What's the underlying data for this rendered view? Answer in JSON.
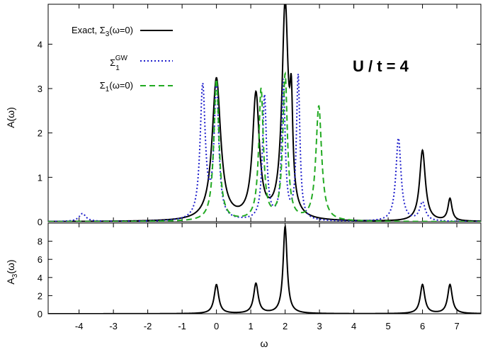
{
  "chart_data": [
    {
      "type": "line",
      "panel": "top",
      "xlabel": "",
      "ylabel": "A(ω)",
      "xlim": [
        -4.9,
        7.7
      ],
      "ylim": [
        0,
        4.9
      ],
      "x_ticks": [
        -4,
        -3,
        -2,
        -1,
        0,
        1,
        2,
        3,
        4,
        5,
        6,
        7
      ],
      "x_tick_labels_shown": false,
      "y_ticks": [
        0,
        1,
        2,
        3,
        4
      ],
      "y_tick_labels": [
        "0",
        "1",
        "2",
        "3",
        "4"
      ],
      "grid": false,
      "legend_position": "top-left",
      "annotation": "U / t = 4",
      "series": [
        {
          "name": "Exact, Σ3(ω=0)",
          "legend_label": {
            "base": "Exact, Σ",
            "sub": "3",
            "tail": "(ω=0)"
          },
          "color": "#000000",
          "style": "solid",
          "width_hint": "0.04",
          "peaks": [
            {
              "x": 0.0,
              "y": 3.2,
              "w": 0.15
            },
            {
              "x": 1.15,
              "y": 2.8,
              "w": 0.12
            },
            {
              "x": 2.0,
              "y": 4.8,
              "w": 0.11
            },
            {
              "x": 2.18,
              "y": 1.95,
              "w": 0.05
            },
            {
              "x": 6.0,
              "y": 1.6,
              "w": 0.1
            },
            {
              "x": 6.8,
              "y": 0.5,
              "w": 0.07
            }
          ]
        },
        {
          "name": "Σ1GW",
          "legend_label": {
            "base": "Σ",
            "sub": "1",
            "sup": "GW"
          },
          "color": "#1f1fcc",
          "style": "dotted",
          "peaks": [
            {
              "x": -3.9,
              "y": 0.18,
              "w": 0.12
            },
            {
              "x": -0.4,
              "y": 3.0,
              "w": 0.09
            },
            {
              "x": 0.0,
              "y": 3.0,
              "w": 0.08
            },
            {
              "x": 1.4,
              "y": 2.8,
              "w": 0.07
            },
            {
              "x": 1.95,
              "y": 3.1,
              "w": 0.06
            },
            {
              "x": 2.38,
              "y": 3.25,
              "w": 0.06
            },
            {
              "x": 5.3,
              "y": 1.87,
              "w": 0.09
            },
            {
              "x": 6.0,
              "y": 0.42,
              "w": 0.1
            }
          ]
        },
        {
          "name": "Σ1(ω=0)",
          "legend_label": {
            "base": "Σ",
            "sub": "1",
            "tail": "(ω=0)"
          },
          "color": "#22aa22",
          "style": "dashed",
          "peaks": [
            {
              "x": 0.0,
              "y": 3.2,
              "w": 0.09
            },
            {
              "x": 1.3,
              "y": 2.95,
              "w": 0.08
            },
            {
              "x": 2.0,
              "y": 3.27,
              "w": 0.08
            },
            {
              "x": 2.98,
              "y": 2.58,
              "w": 0.1
            }
          ]
        }
      ]
    },
    {
      "type": "line",
      "panel": "bottom",
      "xlabel": "ω",
      "ylabel": "A3(ω)",
      "ylabel_parts": {
        "base": "A",
        "sub": "3",
        "tail": "(ω)"
      },
      "xlim": [
        -4.9,
        7.7
      ],
      "ylim": [
        0,
        10
      ],
      "x_ticks": [
        -4,
        -3,
        -2,
        -1,
        0,
        1,
        2,
        3,
        4,
        5,
        6,
        7
      ],
      "x_tick_labels": [
        "-4",
        "-3",
        "-2",
        "-1",
        "0",
        "1",
        "2",
        "3",
        "4",
        "5",
        "6",
        "7"
      ],
      "y_ticks": [
        0,
        2,
        4,
        6,
        8
      ],
      "y_tick_labels": [
        "0",
        "2",
        "4",
        "6",
        "8"
      ],
      "grid": false,
      "series": [
        {
          "color": "#000000",
          "style": "solid",
          "peaks": [
            {
              "x": 0.0,
              "y": 3.2,
              "w": 0.08
            },
            {
              "x": 1.15,
              "y": 3.3,
              "w": 0.08
            },
            {
              "x": 2.0,
              "y": 9.6,
              "w": 0.07
            },
            {
              "x": 6.0,
              "y": 3.2,
              "w": 0.08
            },
            {
              "x": 6.8,
              "y": 3.2,
              "w": 0.08
            }
          ]
        }
      ]
    }
  ]
}
